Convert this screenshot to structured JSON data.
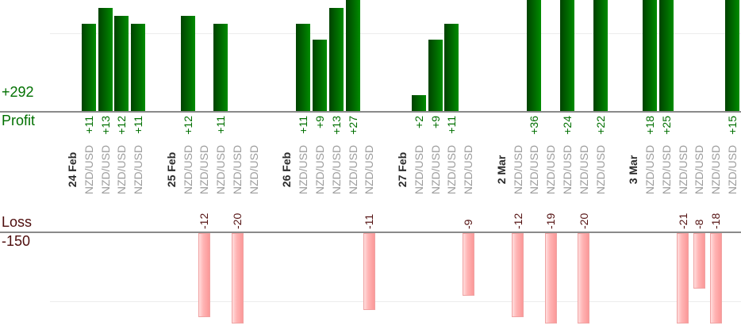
{
  "chart_data": {
    "type": "bar",
    "title": "",
    "instrument": "NZD/USD",
    "legend": "none",
    "grid": "horizontal-light",
    "profit_axis": {
      "total": "+292",
      "label": "Profit",
      "gridline_value": 10,
      "visible_range": [
        0,
        14
      ]
    },
    "loss_axis": {
      "total": "-150",
      "label": "Loss",
      "gridline_value": -10,
      "visible_range": [
        0,
        -13
      ]
    },
    "groups": [
      {
        "date": "24 Feb",
        "trades": [
          11,
          13,
          12,
          11
        ]
      },
      {
        "date": "25 Feb",
        "trades": [
          12,
          -12,
          11,
          -20,
          0
        ]
      },
      {
        "date": "26 Feb",
        "trades": [
          11,
          9,
          13,
          27,
          -11
        ]
      },
      {
        "date": "27 Feb",
        "trades": [
          2,
          9,
          11,
          -9
        ]
      },
      {
        "date": "2 Mar",
        "trades": [
          -12,
          36,
          -19,
          24,
          -20,
          22
        ]
      },
      {
        "date": "3 Mar",
        "trades": [
          18,
          25,
          -21,
          -8,
          -18,
          15
        ]
      }
    ]
  },
  "colors": {
    "profit_text": "#007000",
    "loss_text": "#4d0c0c",
    "loss_label_text": "#551313",
    "instrument_text": "#9c9c9c",
    "date_text": "#2b2b2b",
    "axis_line": "#8a8a8a",
    "gridline": "#ececec",
    "bar_green_dark": "#004200",
    "bar_green_light": "#008c00",
    "bar_pink_light": "#ffdede",
    "bar_pink_dark": "#fb9898",
    "bar_pink_border": "#f0a3a3"
  }
}
